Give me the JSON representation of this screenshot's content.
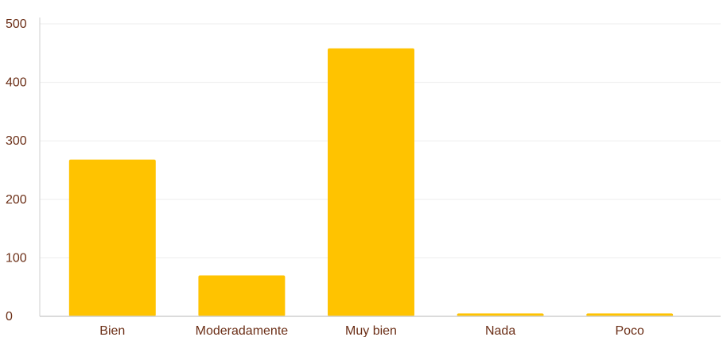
{
  "chart_data": {
    "type": "bar",
    "categories": [
      "Bien",
      "Moderadamente",
      "Muy bien",
      "Nada",
      "Poco"
    ],
    "values": [
      268,
      70,
      458,
      5,
      5
    ],
    "ylim": [
      0,
      500
    ],
    "yticks": [
      0,
      100,
      200,
      300,
      400,
      500
    ],
    "grid": true,
    "legend": "none",
    "title": "",
    "xlabel": "",
    "ylabel": ""
  },
  "colors": {
    "bar": "#FFC300",
    "tick_label": "#6b2e16",
    "grid": "#ededed",
    "axis": "#cfcfcf"
  }
}
